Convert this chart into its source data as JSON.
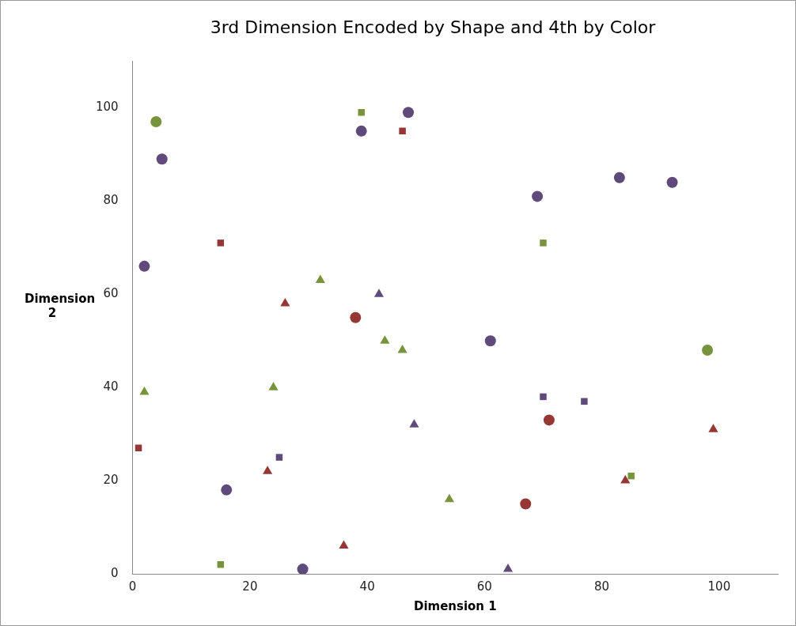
{
  "chart_data": {
    "type": "scatter",
    "title": "3rd Dimension Encoded by Shape and 4th by Color",
    "xlabel": "Dimension 1",
    "ylabel": "Dimension 2",
    "xlim": [
      0,
      110
    ],
    "xticks": [
      0,
      20,
      40,
      60,
      80,
      100
    ],
    "ylim": [
      0,
      110
    ],
    "yticks": [
      0,
      20,
      40,
      60,
      80,
      100
    ],
    "grid": false,
    "legend": false,
    "series": [
      {
        "color": "#604a7b",
        "marker": "circle",
        "x": [
          5,
          2,
          16,
          29,
          39,
          47,
          61,
          69,
          83,
          92
        ],
        "values": [
          89,
          66,
          18,
          1,
          95,
          99,
          50,
          81,
          85,
          84
        ]
      },
      {
        "color": "#77933c",
        "marker": "circle",
        "x": [
          4,
          98
        ],
        "values": [
          97,
          48
        ]
      },
      {
        "color": "#953735",
        "marker": "circle",
        "x": [
          38,
          71,
          67
        ],
        "values": [
          55,
          33,
          15
        ]
      },
      {
        "color": "#77933c",
        "marker": "square",
        "x": [
          39,
          70,
          15,
          85
        ],
        "values": [
          99,
          71,
          2,
          21
        ]
      },
      {
        "color": "#953735",
        "marker": "square",
        "x": [
          46,
          15,
          1
        ],
        "values": [
          95,
          71,
          27
        ]
      },
      {
        "color": "#604a7b",
        "marker": "square",
        "x": [
          25,
          70,
          77
        ],
        "values": [
          25,
          38,
          37
        ]
      },
      {
        "color": "#77933c",
        "marker": "triangle",
        "x": [
          32,
          43,
          46,
          2,
          24,
          54
        ],
        "values": [
          63,
          50,
          48,
          39,
          40,
          16
        ]
      },
      {
        "color": "#604a7b",
        "marker": "triangle",
        "x": [
          42,
          48,
          64
        ],
        "values": [
          60,
          32,
          1
        ]
      },
      {
        "color": "#953735",
        "marker": "triangle",
        "x": [
          26,
          23,
          36,
          84,
          99
        ],
        "values": [
          58,
          22,
          6,
          20,
          31
        ]
      }
    ]
  }
}
